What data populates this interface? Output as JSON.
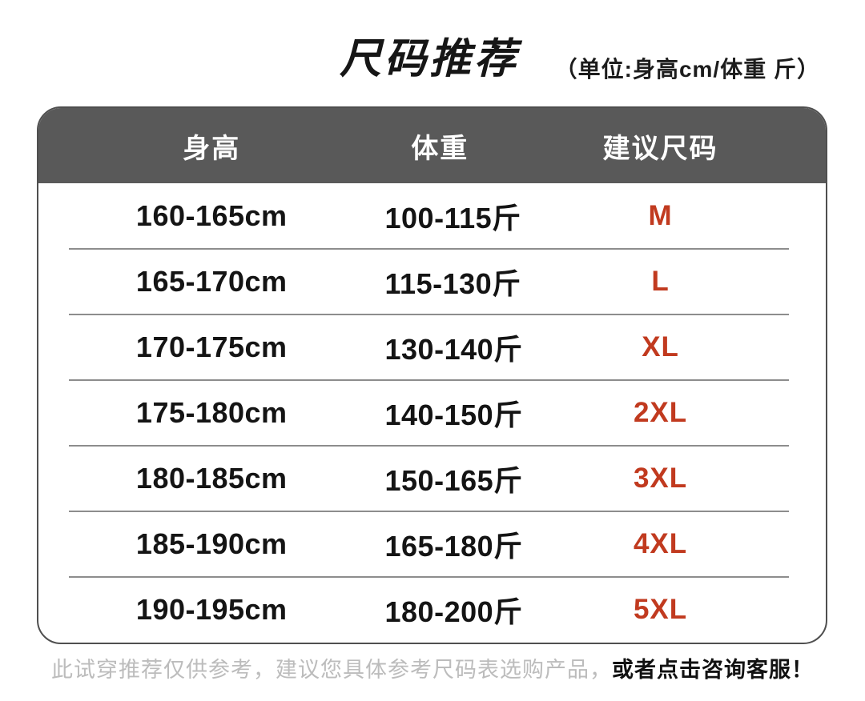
{
  "header": {
    "title": "尺码推荐",
    "unit_note": "（单位:身高cm/体重 斤）"
  },
  "table": {
    "columns": [
      "身高",
      "体重",
      "建议尺码"
    ],
    "rows": [
      {
        "height": "160-165cm",
        "weight": "100-115斤",
        "size": "M"
      },
      {
        "height": "165-170cm",
        "weight": "115-130斤",
        "size": "L"
      },
      {
        "height": "170-175cm",
        "weight": "130-140斤",
        "size": "XL"
      },
      {
        "height": "175-180cm",
        "weight": "140-150斤",
        "size": "2XL"
      },
      {
        "height": "180-185cm",
        "weight": "150-165斤",
        "size": "3XL"
      },
      {
        "height": "185-190cm",
        "weight": "165-180斤",
        "size": "4XL"
      },
      {
        "height": "190-195cm",
        "weight": "180-200斤",
        "size": "5XL"
      }
    ]
  },
  "footer": {
    "disclaimer": "此试穿推荐仅供参考，建议您具体参考尺码表选购产品，",
    "cta": "或者点击咨询客服！"
  },
  "colors": {
    "header_bg": "#595959",
    "card_border": "#4f4f4f",
    "divider": "#8d8d8d",
    "accent": "#c13a1f",
    "muted": "#bcbcbc"
  },
  "chart_data": {
    "type": "table",
    "title": "尺码推荐",
    "subtitle": "（单位:身高cm/体重 斤）",
    "columns": [
      "身高",
      "体重",
      "建议尺码"
    ],
    "rows": [
      [
        "160-165cm",
        "100-115斤",
        "M"
      ],
      [
        "165-170cm",
        "115-130斤",
        "L"
      ],
      [
        "170-175cm",
        "130-140斤",
        "XL"
      ],
      [
        "175-180cm",
        "140-150斤",
        "2XL"
      ],
      [
        "180-185cm",
        "150-165斤",
        "3XL"
      ],
      [
        "185-190cm",
        "165-180斤",
        "4XL"
      ],
      [
        "190-195cm",
        "180-200斤",
        "5XL"
      ]
    ],
    "footnote": "此试穿推荐仅供参考，建议您具体参考尺码表选购产品，或者点击咨询客服！"
  }
}
